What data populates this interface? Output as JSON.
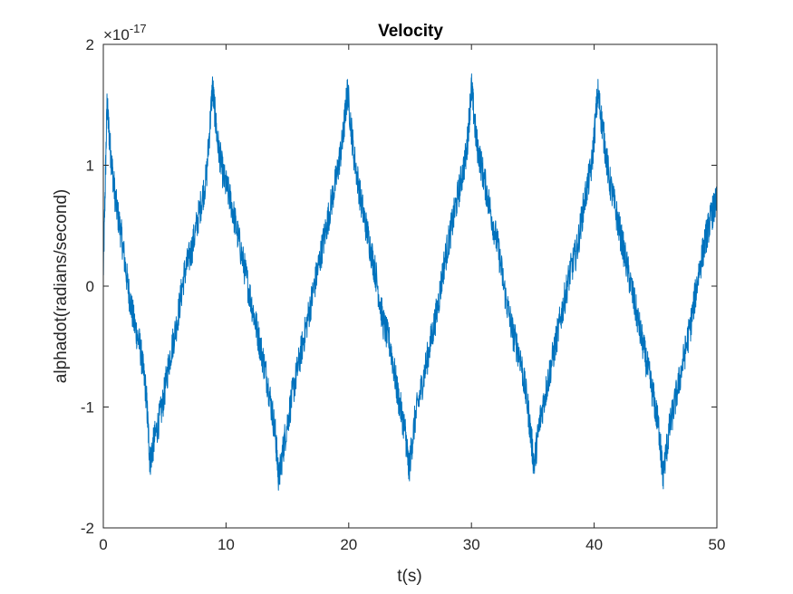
{
  "chart_data": {
    "type": "line",
    "title": "Velocity",
    "xlabel": "t(s)",
    "ylabel": "alphadot(radians/second)",
    "xlim": [
      0,
      50
    ],
    "ylim": [
      -2e-17,
      2e-17
    ],
    "x_ticks": [
      0,
      10,
      20,
      30,
      40,
      50
    ],
    "x_tick_labels": [
      "0",
      "10",
      "20",
      "30",
      "40",
      "50"
    ],
    "y_ticks": [
      -2,
      -1,
      0,
      1,
      2
    ],
    "y_tick_labels": [
      "-2",
      "-1",
      "0",
      "1",
      "2"
    ],
    "y_exponent": {
      "base": "×10",
      "power": "-17"
    },
    "grid": false,
    "series": [
      {
        "color": "#0072BD",
        "x": [
          0,
          0.3,
          0.6,
          1.0,
          1.5,
          2.0,
          2.5,
          3.0,
          3.5,
          3.8,
          4.2,
          4.8,
          5.4,
          6.0,
          6.6,
          7.2,
          7.8,
          8.4,
          8.9,
          9.3,
          9.8,
          10.4,
          11.0,
          11.6,
          12.2,
          12.8,
          13.4,
          14.0,
          14.3,
          14.8,
          15.4,
          16.0,
          16.6,
          17.2,
          17.8,
          18.4,
          19.0,
          19.5,
          19.9,
          20.4,
          21.0,
          21.6,
          22.2,
          22.8,
          23.4,
          24.0,
          24.6,
          24.9,
          25.4,
          26.0,
          26.6,
          27.2,
          27.8,
          28.4,
          29.0,
          29.6,
          30.0,
          30.4,
          31.0,
          31.6,
          32.2,
          32.8,
          33.4,
          34.0,
          34.6,
          35.1,
          35.6,
          36.2,
          36.8,
          37.4,
          38.0,
          38.6,
          39.2,
          39.8,
          40.3,
          40.7,
          41.2,
          41.8,
          42.4,
          43.0,
          43.6,
          44.2,
          44.8,
          45.3,
          45.6,
          46.1,
          46.7,
          47.3,
          47.9,
          48.5,
          49.1,
          49.6,
          50.0
        ],
        "y": [
          1e-18,
          1.5e-17,
          1.1e-17,
          7e-18,
          4e-18,
          0.0,
          -3e-18,
          -5e-18,
          -9e-18,
          -1.45e-17,
          -1.25e-17,
          -1e-17,
          -6e-18,
          -3e-18,
          1e-18,
          3e-18,
          6e-18,
          9e-18,
          1.65e-17,
          1.2e-17,
          9e-18,
          7e-18,
          4e-18,
          1e-18,
          -2e-18,
          -5e-18,
          -8e-18,
          -1.2e-17,
          -1.6e-17,
          -1.25e-17,
          -9e-18,
          -6e-18,
          -3e-18,
          0.0,
          3e-18,
          6e-18,
          9e-18,
          1.2e-17,
          1.62e-17,
          1.1e-17,
          7e-18,
          4e-18,
          1e-18,
          -3e-18,
          -5e-18,
          -9e-18,
          -1.2e-17,
          -1.52e-17,
          -1.1e-17,
          -8e-18,
          -5e-18,
          -2e-18,
          2e-18,
          5e-18,
          8e-18,
          1.1e-17,
          1.65e-17,
          1.2e-17,
          9e-18,
          6e-18,
          3e-18,
          -1e-18,
          -4e-18,
          -6e-18,
          -1e-17,
          -1.48e-17,
          -1.1e-17,
          -8e-18,
          -5e-18,
          -2e-18,
          1e-18,
          3e-18,
          7e-18,
          1e-17,
          1.6e-17,
          1.3e-17,
          9e-18,
          6e-18,
          3e-18,
          0.0,
          -3e-18,
          -6e-18,
          -9e-18,
          -1.2e-17,
          -1.57e-17,
          -1.2e-17,
          -9e-18,
          -6e-18,
          -3e-18,
          1e-18,
          4e-18,
          6e-18,
          7e-18
        ]
      }
    ]
  }
}
